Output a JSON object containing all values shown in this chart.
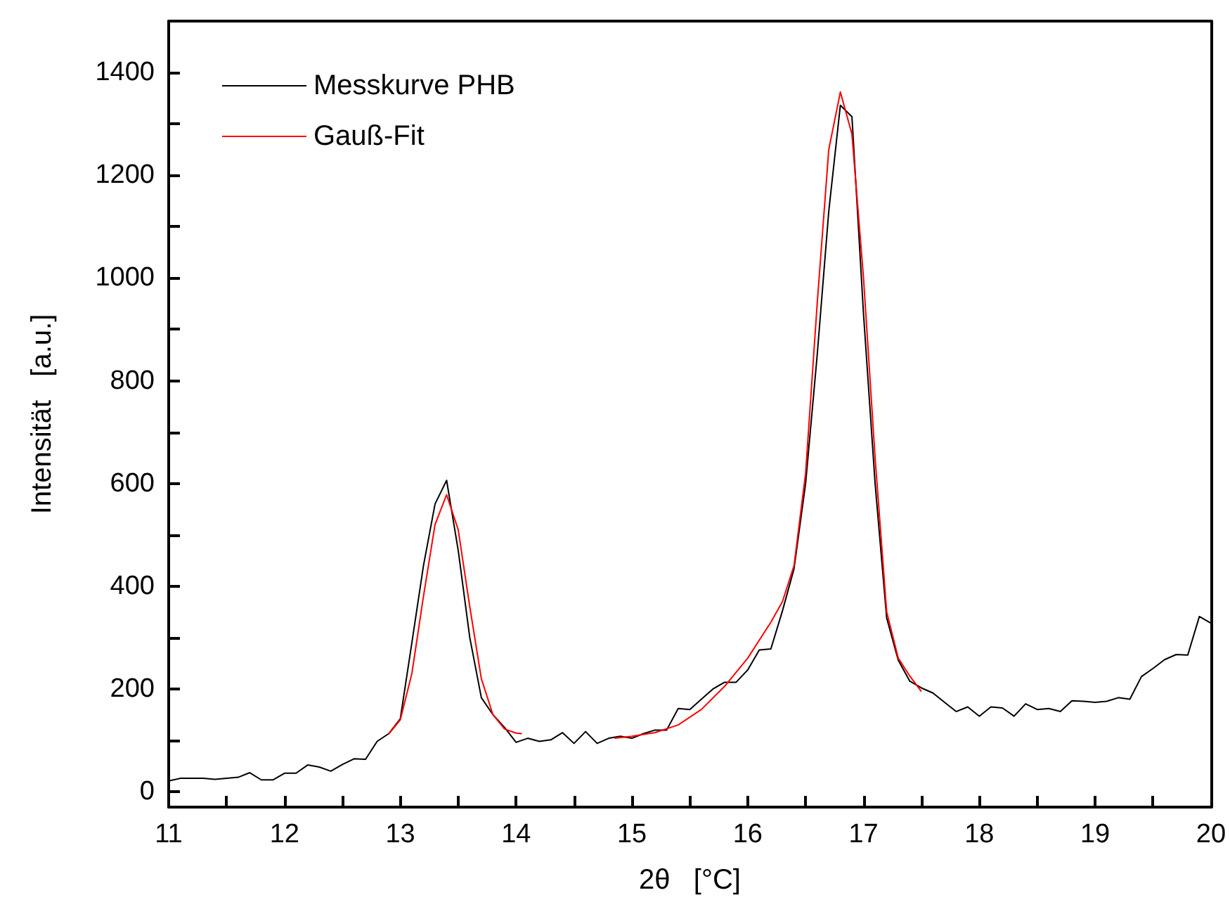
{
  "chart_data": {
    "type": "line",
    "xlabel": "2θ   [°C]",
    "ylabel": "Intensität   [a.u.]",
    "xlim": [
      11,
      20
    ],
    "ylim": [
      -30,
      1500
    ],
    "xticks": [
      11,
      {
        "value": 11.5,
        "label": null
      },
      12,
      {
        "value": 12.5,
        "label": null
      },
      13,
      {
        "value": 13.5,
        "label": null
      },
      14,
      {
        "value": 14.5,
        "label": null
      },
      15,
      {
        "value": 15.5,
        "label": null
      },
      16,
      {
        "value": 16.5,
        "label": null
      },
      17,
      {
        "value": 17.5,
        "label": null
      },
      18,
      {
        "value": 18.5,
        "label": null
      },
      19,
      {
        "value": 19.5,
        "label": null
      },
      20
    ],
    "yticks": [
      0,
      {
        "value": 100,
        "label": null
      },
      200,
      {
        "value": 300,
        "label": null
      },
      400,
      {
        "value": 500,
        "label": null
      },
      600,
      {
        "value": 700,
        "label": null
      },
      800,
      {
        "value": 900,
        "label": null
      },
      1000,
      {
        "value": 1100,
        "label": null
      },
      1200,
      {
        "value": 1300,
        "label": null
      },
      1400
    ],
    "grid": false,
    "legend": "top left",
    "marker": "none",
    "line_style": "solid",
    "series": [
      {
        "name": "Messkurve PHB",
        "color": "#000000",
        "x": [
          11.0,
          11.1,
          11.2,
          11.3,
          11.4,
          11.5,
          11.6,
          11.7,
          11.8,
          11.9,
          12.0,
          12.1,
          12.2,
          12.3,
          12.4,
          12.5,
          12.6,
          12.7,
          12.8,
          12.9,
          13.0,
          13.1,
          13.2,
          13.3,
          13.4,
          13.5,
          13.6,
          13.7,
          13.8,
          13.9,
          14.0,
          14.1,
          14.2,
          14.3,
          14.4,
          14.5,
          14.6,
          14.7,
          14.8,
          14.9,
          15.0,
          15.1,
          15.2,
          15.3,
          15.4,
          15.5,
          15.6,
          15.7,
          15.8,
          15.9,
          16.0,
          16.1,
          16.2,
          16.3,
          16.4,
          16.5,
          16.6,
          16.7,
          16.8,
          16.9,
          17.0,
          17.1,
          17.2,
          17.3,
          17.4,
          17.5,
          17.6,
          17.7,
          17.8,
          17.9,
          18.0,
          18.1,
          18.2,
          18.3,
          18.4,
          18.5,
          18.6,
          18.7,
          18.8,
          18.9,
          19.0,
          19.1,
          19.2,
          19.3,
          19.4,
          19.5,
          19.6,
          19.7,
          19.8,
          19.9,
          20.0
        ],
        "values": [
          21,
          26,
          26,
          26,
          24,
          26,
          28,
          37,
          23,
          23,
          36,
          36,
          52,
          48,
          40,
          53,
          64,
          63,
          98,
          113,
          142,
          290,
          440,
          560,
          606,
          470,
          300,
          183,
          150,
          125,
          96,
          104,
          98,
          101,
          115,
          94,
          117,
          94,
          104,
          108,
          104,
          113,
          120,
          120,
          162,
          160,
          180,
          200,
          213,
          213,
          237,
          276,
          278,
          352,
          434,
          600,
          850,
          1130,
          1336,
          1314,
          930,
          600,
          338,
          256,
          215,
          202,
          192,
          174,
          156,
          165,
          147,
          165,
          163,
          147,
          171,
          160,
          162,
          156,
          177,
          176,
          174,
          176,
          183,
          180,
          224,
          240,
          257,
          267,
          266,
          341,
          328
        ]
      },
      {
        "name": "Gauß-Fit",
        "color": "#ff0000",
        "x": [
          12.9,
          13.0,
          13.1,
          13.2,
          13.3,
          13.4,
          13.5,
          13.6,
          13.7,
          13.8,
          13.9,
          14.0,
          14.05
        ],
        "values": [
          112,
          140,
          230,
          380,
          520,
          578,
          510,
          360,
          220,
          150,
          122,
          114,
          113
        ]
      },
      {
        "color": "#ff0000",
        "x": [
          14.85,
          15.0,
          15.2,
          15.4,
          15.6,
          15.8,
          16.0,
          16.2,
          16.3,
          16.4,
          16.5,
          16.6,
          16.7,
          16.8,
          16.9,
          17.0,
          17.1,
          17.2,
          17.3,
          17.4,
          17.5
        ],
        "values": [
          104,
          108,
          115,
          130,
          160,
          205,
          260,
          330,
          370,
          440,
          620,
          950,
          1250,
          1362,
          1280,
          1000,
          650,
          350,
          260,
          225,
          195
        ]
      }
    ]
  }
}
